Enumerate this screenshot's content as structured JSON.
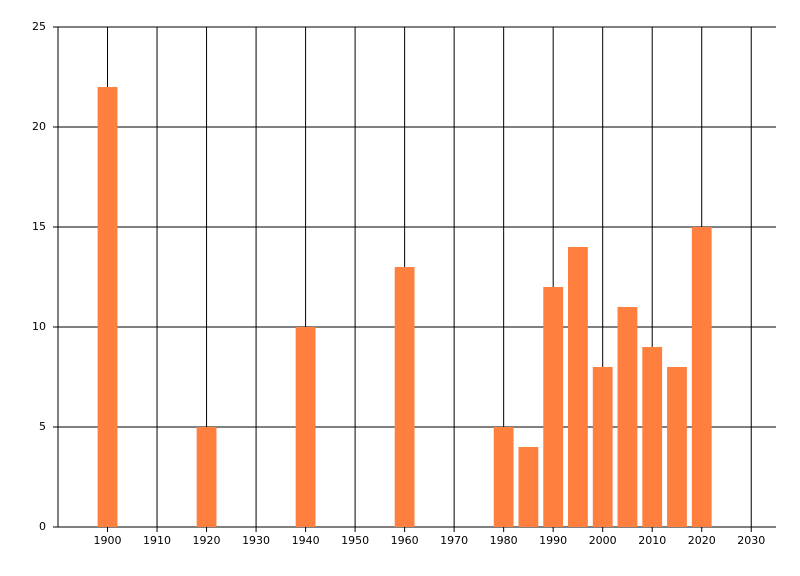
{
  "chart_data": {
    "type": "bar",
    "x": [
      1900,
      1920,
      1940,
      1960,
      1980,
      1985,
      1990,
      1995,
      2000,
      2005,
      2010,
      2015,
      2020
    ],
    "values": [
      22,
      5,
      10,
      13,
      5,
      4,
      12,
      14,
      8,
      11,
      9,
      8,
      15
    ],
    "color": "#ff7f3f",
    "xlim": [
      1890,
      2035
    ],
    "xticks": [
      1900,
      1910,
      1920,
      1930,
      1940,
      1950,
      1960,
      1970,
      1980,
      1990,
      2000,
      2010,
      2020,
      2030
    ],
    "ylim": [
      0,
      25
    ],
    "yticks": [
      0,
      5,
      10,
      15,
      20,
      25
    ],
    "grid": true
  }
}
